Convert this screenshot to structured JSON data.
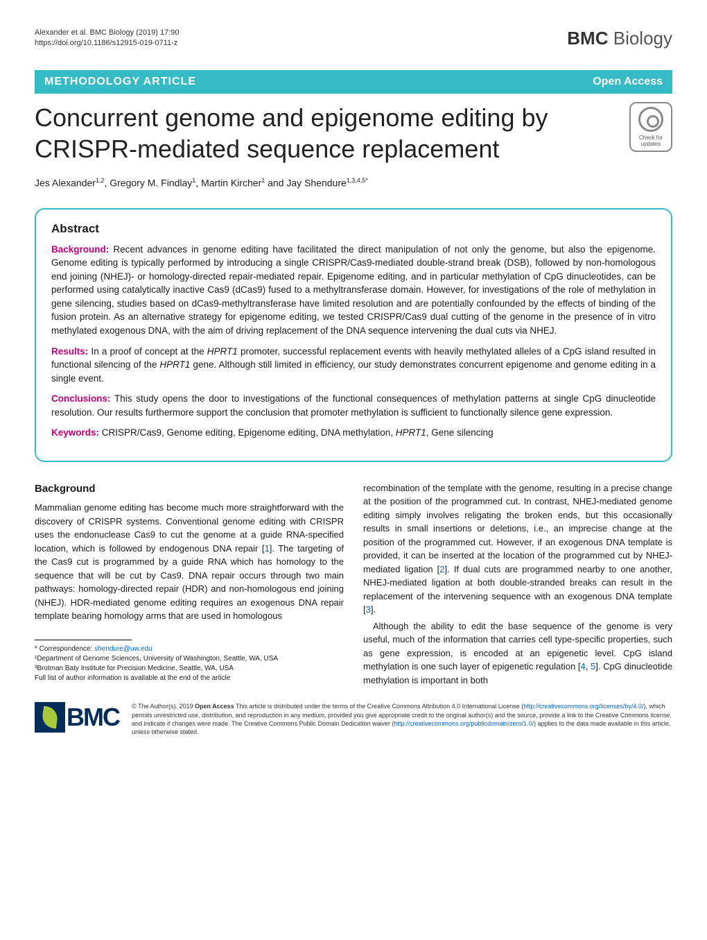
{
  "header": {
    "citation_line1": "Alexander et al. BMC Biology          (2019) 17:90",
    "citation_line2": "https://doi.org/10.1186/s12915-019-0711-z",
    "journal_prefix": "BMC",
    "journal_suffix": " Biology"
  },
  "category_bar": {
    "article_type": "METHODOLOGY ARTICLE",
    "open_access": "Open Access"
  },
  "title": "Concurrent genome and epigenome editing by CRISPR-mediated sequence replacement",
  "crossmark": {
    "line1": "Check for",
    "line2": "updates"
  },
  "authors_html": "Jes Alexander<sup>1,2</sup>, Gregory M. Findlay<sup>1</sup>, Martin Kircher<sup>1</sup> and Jay Shendure<sup>1,3,4,5*</sup>",
  "abstract": {
    "heading": "Abstract",
    "background_label": "Background:",
    "background_text": " Recent advances in genome editing have facilitated the direct manipulation of not only the genome, but also the epigenome. Genome editing is typically performed by introducing a single CRISPR/Cas9-mediated double-strand break (DSB), followed by non-homologous end joining (NHEJ)- or homology-directed repair-mediated repair. Epigenome editing, and in particular methylation of CpG dinucleotides, can be performed using catalytically inactive Cas9 (dCas9) fused to a methyltransferase domain. However, for investigations of the role of methylation in gene silencing, studies based on dCas9-methyltransferase have limited resolution and are potentially confounded by the effects of binding of the fusion protein. As an alternative strategy for epigenome editing, we tested CRISPR/Cas9 dual cutting of the genome in the presence of in vitro methylated exogenous DNA, with the aim of driving replacement of the DNA sequence intervening the dual cuts via NHEJ.",
    "results_label": "Results:",
    "results_text_pre": " In a proof of concept at the ",
    "results_gene1": "HPRT1",
    "results_text_mid": " promoter, successful replacement events with heavily methylated alleles of a CpG island resulted in functional silencing of the ",
    "results_gene2": "HPRT1",
    "results_text_post": " gene. Although still limited in efficiency, our study demonstrates concurrent epigenome and genome editing in a single event.",
    "conclusions_label": "Conclusions:",
    "conclusions_text": " This study opens the door to investigations of the functional consequences of methylation patterns at single CpG dinucleotide resolution. Our results furthermore support the conclusion that promoter methylation is sufficient to functionally silence gene expression.",
    "keywords_label": "Keywords:",
    "keywords_text_pre": " CRISPR/Cas9, Genome editing, Epigenome editing, DNA methylation, ",
    "keywords_gene": "HPRT1",
    "keywords_text_post": ", Gene silencing"
  },
  "body": {
    "background_heading": "Background",
    "col1_p1_a": "Mammalian genome editing has become much more straightforward with the discovery of CRISPR systems. Conventional genome editing with CRISPR uses the endonuclease Cas9 to cut the genome at a guide RNA-specified location, which is followed by endogenous DNA repair [",
    "col1_ref1": "1",
    "col1_p1_b": "]. The targeting of the Cas9 cut is programmed by a guide RNA which has homology to the sequence that will be cut by Cas9. DNA repair occurs through two main pathways: homology-directed repair (HDR) and non-homologous end joining (NHEJ). HDR-mediated genome editing requires an exogenous DNA repair template bearing homology arms that are used in homologous",
    "col2_p1_a": "recombination of the template with the genome, resulting in a precise change at the position of the programmed cut. In contrast, NHEJ-mediated genome editing simply involves religating the broken ends, but this occasionally results in small insertions or deletions, i.e., an imprecise change at the position of the programmed cut. However, if an exogenous DNA template is provided, it can be inserted at the location of the programmed cut by NHEJ-mediated ligation [",
    "col2_ref2": "2",
    "col2_p1_b": "]. If dual cuts are programmed nearby to one another, NHEJ-mediated ligation at both double-stranded breaks can result in the replacement of the intervening sequence with an exogenous DNA template [",
    "col2_ref3": "3",
    "col2_p1_c": "].",
    "col2_p2_a": "Although the ability to edit the base sequence of the genome is very useful, much of the information that carries cell type-specific properties, such as gene expression, is encoded at an epigenetic level. CpG island methylation is one such layer of epigenetic regulation [",
    "col2_ref4": "4",
    "col2_p2_b": ", ",
    "col2_ref5": "5",
    "col2_p2_c": "]. CpG dinucleotide methylation is important in both"
  },
  "correspondence": {
    "line1_pre": "* Correspondence: ",
    "email": "shendure@uw.edu",
    "line2": "¹Department of Genome Sciences, University of Washington, Seattle, WA, USA",
    "line3": "³Brotman Baty Institute for Precision Medicine, Seattle, WA, USA",
    "line4": "Full list of author information is available at the end of the article"
  },
  "bmc_logo_text": "BMC",
  "license": {
    "pre1": "© The Author(s). 2019 ",
    "bold1": "Open Access",
    "text1": " This article is distributed under the terms of the Creative Commons Attribution 4.0 International License (",
    "url1": "http://creativecommons.org/licenses/by/4.0/",
    "text2": "), which permits unrestricted use, distribution, and reproduction in any medium, provided you give appropriate credit to the original author(s) and the source, provide a link to the Creative Commons license, and indicate if changes were made. The Creative Commons Public Domain Dedication waiver (",
    "url2": "http://creativecommons.org/publicdomain/zero/1.0/",
    "text3": ") applies to the data made available in this article, unless otherwise stated."
  },
  "colors": {
    "teal": "#34bbc5",
    "magenta": "#c4007a",
    "link": "#0066cc",
    "bmc_navy": "#012d5a",
    "bmc_green": "#a8c93b"
  }
}
